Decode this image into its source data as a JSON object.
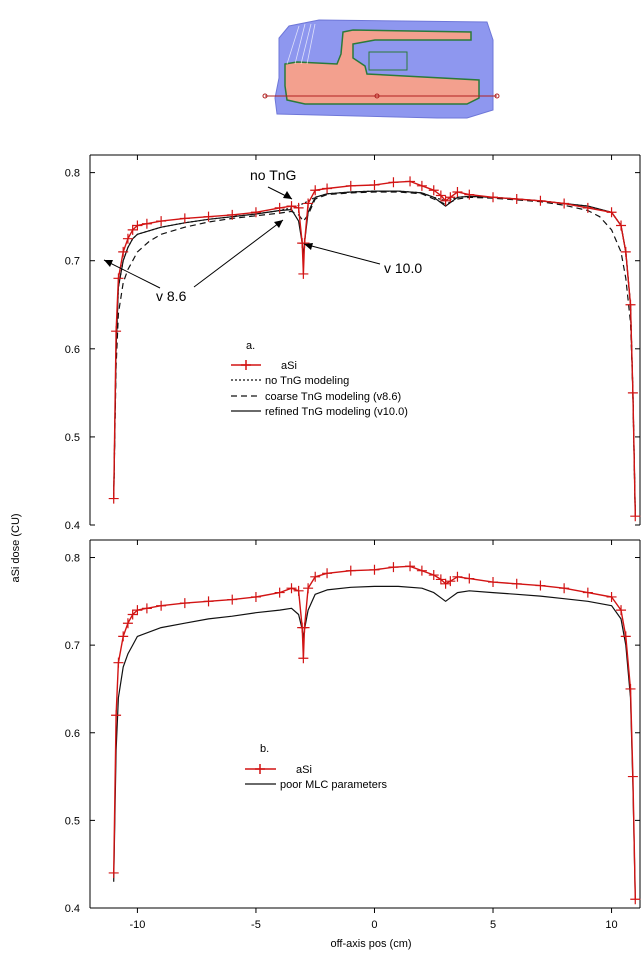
{
  "figure": {
    "ylabel": "aSi dose (CU)",
    "xlabel": "off-axis pos (cm)",
    "inset_icon": "field-shape-dose-map"
  },
  "colors": {
    "asi": "#d21414",
    "model": "#111111",
    "inset_outer": "#8e97ef",
    "inset_inner": "#f3a08e",
    "inset_contour": "#2a7a3a"
  },
  "chart_data": [
    {
      "type": "line",
      "panel_label": "a.",
      "title": "",
      "xlabel": "off-axis pos (cm)",
      "ylabel": "aSi dose (CU)",
      "xlim": [
        -12,
        11.2
      ],
      "ylim": [
        0.4,
        0.82
      ],
      "xticks": [
        -10,
        -5,
        0,
        5,
        10
      ],
      "yticks": [
        0.4,
        0.5,
        0.6,
        0.7,
        0.8
      ],
      "ytick_labels": [
        "0.4",
        "0.5",
        "0.6",
        "0.7",
        "0.8"
      ],
      "grid": false,
      "legend_position": "center-left",
      "legend": [
        "aSi",
        "no TnG modeling",
        "coarse TnG modeling (v8.6)",
        "refined TnG modeling (v10.0)"
      ],
      "annotations": [
        "no TnG",
        "v 8.6",
        "v 10.0"
      ],
      "series": [
        {
          "name": "aSi",
          "style": "red-line-plus-markers",
          "x": [
            -11,
            -10.9,
            -10.8,
            -10.6,
            -10.4,
            -10.2,
            -10,
            -9.6,
            -9,
            -8,
            -7,
            -6,
            -5,
            -4,
            -3.5,
            -3.2,
            -3.05,
            -3,
            -2.95,
            -2.8,
            -2.5,
            -2,
            -1,
            0,
            0.8,
            1.5,
            2,
            2.5,
            2.8,
            3,
            3.2,
            3.5,
            4,
            5,
            6,
            7,
            8,
            9,
            10,
            10.4,
            10.6,
            10.8,
            10.9,
            11
          ],
          "y": [
            0.43,
            0.62,
            0.68,
            0.71,
            0.725,
            0.735,
            0.74,
            0.742,
            0.745,
            0.748,
            0.75,
            0.752,
            0.755,
            0.76,
            0.762,
            0.76,
            0.72,
            0.685,
            0.72,
            0.765,
            0.78,
            0.782,
            0.785,
            0.786,
            0.789,
            0.79,
            0.785,
            0.78,
            0.774,
            0.768,
            0.772,
            0.778,
            0.775,
            0.772,
            0.77,
            0.768,
            0.765,
            0.76,
            0.755,
            0.74,
            0.71,
            0.65,
            0.55,
            0.41
          ]
        },
        {
          "name": "no TnG modeling",
          "style": "dotted",
          "x": [
            -11,
            -10.9,
            -10.8,
            -10.6,
            -10.4,
            -10.2,
            -10,
            -9,
            -8,
            -7,
            -6,
            -5,
            -4,
            -3.5,
            -3,
            -2.5,
            -2,
            -1,
            0,
            1,
            2,
            2.5,
            3,
            3.5,
            4,
            5,
            6,
            7,
            8,
            9,
            10,
            10.4,
            10.6,
            10.8,
            10.9,
            11
          ],
          "y": [
            0.43,
            0.6,
            0.67,
            0.7,
            0.715,
            0.725,
            0.73,
            0.738,
            0.743,
            0.747,
            0.75,
            0.753,
            0.757,
            0.76,
            0.765,
            0.772,
            0.776,
            0.778,
            0.779,
            0.779,
            0.777,
            0.772,
            0.768,
            0.772,
            0.773,
            0.772,
            0.77,
            0.768,
            0.765,
            0.762,
            0.755,
            0.74,
            0.71,
            0.65,
            0.55,
            0.41
          ]
        },
        {
          "name": "coarse TnG modeling (v8.6)",
          "style": "dashed",
          "x": [
            -11,
            -10.9,
            -10.8,
            -10.6,
            -10.4,
            -10.2,
            -10,
            -9.5,
            -9,
            -8,
            -7,
            -6,
            -5,
            -4,
            -3.5,
            -3.2,
            -3,
            -2.8,
            -2.5,
            -2,
            -1,
            0,
            1,
            2,
            2.5,
            3,
            3.5,
            4,
            5,
            6,
            7,
            8,
            9,
            9.5,
            10,
            10.4,
            10.6,
            10.8,
            10.9,
            11
          ],
          "y": [
            0.43,
            0.58,
            0.64,
            0.675,
            0.69,
            0.7,
            0.71,
            0.722,
            0.73,
            0.738,
            0.744,
            0.748,
            0.751,
            0.754,
            0.756,
            0.752,
            0.745,
            0.752,
            0.77,
            0.775,
            0.777,
            0.778,
            0.778,
            0.776,
            0.77,
            0.764,
            0.77,
            0.772,
            0.771,
            0.769,
            0.767,
            0.763,
            0.757,
            0.75,
            0.735,
            0.71,
            0.68,
            0.63,
            0.55,
            0.41
          ]
        },
        {
          "name": "refined TnG modeling (v10.0)",
          "style": "solid",
          "x": [
            -11,
            -10.9,
            -10.8,
            -10.6,
            -10.4,
            -10.2,
            -10,
            -9,
            -8,
            -7,
            -6,
            -5,
            -4,
            -3.5,
            -3.2,
            -3.05,
            -3,
            -2.95,
            -2.8,
            -2.5,
            -2,
            -1,
            0,
            1,
            2,
            2.5,
            2.8,
            3,
            3.2,
            3.5,
            4,
            5,
            6,
            7,
            8,
            9,
            10,
            10.4,
            10.6,
            10.8,
            10.9,
            11
          ],
          "y": [
            0.43,
            0.6,
            0.67,
            0.7,
            0.715,
            0.725,
            0.73,
            0.738,
            0.743,
            0.747,
            0.75,
            0.753,
            0.757,
            0.758,
            0.745,
            0.72,
            0.705,
            0.72,
            0.755,
            0.772,
            0.776,
            0.778,
            0.779,
            0.779,
            0.777,
            0.772,
            0.766,
            0.762,
            0.766,
            0.772,
            0.773,
            0.772,
            0.77,
            0.768,
            0.765,
            0.762,
            0.755,
            0.74,
            0.71,
            0.65,
            0.55,
            0.41
          ]
        }
      ]
    },
    {
      "type": "line",
      "panel_label": "b.",
      "title": "",
      "xlabel": "off-axis pos (cm)",
      "ylabel": "aSi dose (CU)",
      "xlim": [
        -12,
        11.2
      ],
      "ylim": [
        0.4,
        0.82
      ],
      "xticks": [
        -10,
        -5,
        0,
        5,
        10
      ],
      "xtick_labels": [
        "-10",
        "-5",
        "0",
        "5",
        "10"
      ],
      "yticks": [
        0.4,
        0.5,
        0.6,
        0.7,
        0.8
      ],
      "ytick_labels": [
        "0.4",
        "0.5",
        "0.6",
        "0.7",
        "0.8"
      ],
      "grid": false,
      "legend_position": "center-left",
      "legend": [
        "aSi",
        "poor MLC parameters"
      ],
      "series": [
        {
          "name": "aSi",
          "style": "red-line-plus-markers",
          "x": [
            -11,
            -10.9,
            -10.8,
            -10.6,
            -10.4,
            -10.2,
            -10,
            -9.6,
            -9,
            -8,
            -7,
            -6,
            -5,
            -4,
            -3.5,
            -3.2,
            -3.05,
            -3,
            -2.95,
            -2.8,
            -2.5,
            -2,
            -1,
            0,
            0.8,
            1.5,
            2,
            2.5,
            2.8,
            3,
            3.2,
            3.5,
            4,
            5,
            6,
            7,
            8,
            9,
            10,
            10.4,
            10.6,
            10.8,
            10.9,
            11
          ],
          "y": [
            0.44,
            0.62,
            0.68,
            0.71,
            0.725,
            0.735,
            0.74,
            0.742,
            0.745,
            0.748,
            0.75,
            0.752,
            0.755,
            0.76,
            0.765,
            0.762,
            0.72,
            0.685,
            0.72,
            0.765,
            0.778,
            0.782,
            0.785,
            0.786,
            0.789,
            0.79,
            0.785,
            0.78,
            0.775,
            0.77,
            0.773,
            0.778,
            0.776,
            0.772,
            0.77,
            0.768,
            0.765,
            0.76,
            0.755,
            0.74,
            0.71,
            0.65,
            0.55,
            0.41
          ]
        },
        {
          "name": "poor MLC parameters",
          "style": "solid",
          "x": [
            -11,
            -10.9,
            -10.8,
            -10.6,
            -10.4,
            -10.2,
            -10,
            -9,
            -8,
            -7,
            -6,
            -5,
            -4,
            -3.5,
            -3.2,
            -3.05,
            -3,
            -2.95,
            -2.8,
            -2.5,
            -2,
            -1,
            0,
            1,
            2,
            2.5,
            2.8,
            3,
            3.2,
            3.5,
            4,
            5,
            6,
            7,
            8,
            9,
            10,
            10.4,
            10.6,
            10.8,
            10.9,
            11
          ],
          "y": [
            0.43,
            0.58,
            0.64,
            0.675,
            0.69,
            0.7,
            0.71,
            0.72,
            0.725,
            0.73,
            0.733,
            0.737,
            0.74,
            0.742,
            0.735,
            0.718,
            0.708,
            0.718,
            0.74,
            0.758,
            0.763,
            0.766,
            0.767,
            0.767,
            0.765,
            0.76,
            0.754,
            0.75,
            0.754,
            0.76,
            0.762,
            0.76,
            0.758,
            0.756,
            0.753,
            0.75,
            0.745,
            0.73,
            0.7,
            0.64,
            0.54,
            0.41
          ]
        }
      ]
    }
  ]
}
